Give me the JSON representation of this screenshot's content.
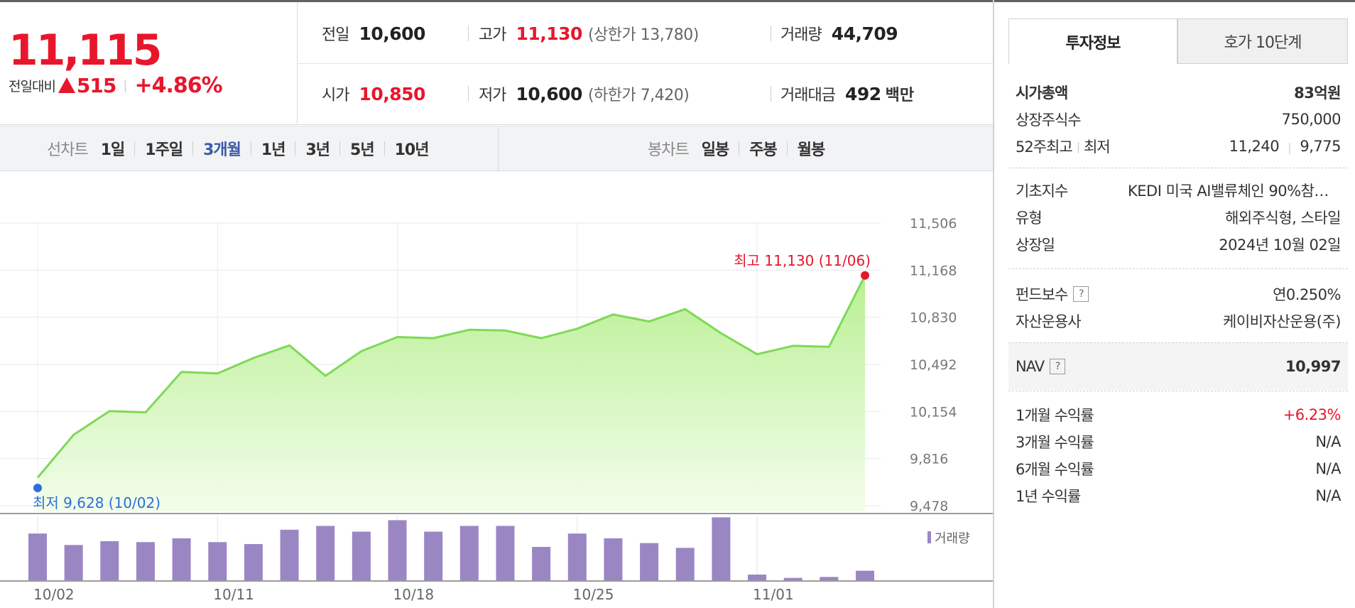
{
  "summary": {
    "price": "11,115",
    "diff_label": "전일대비",
    "diff_value": "515",
    "diff_pct": "+4.86%",
    "prev_label": "전일",
    "prev_value": "10,600",
    "open_label": "시가",
    "open_value": "10,850",
    "high_label": "고가",
    "high_value": "11,130",
    "high_note": "(상한가 13,780)",
    "low_label": "저가",
    "low_value": "10,600",
    "low_note": "(하한가 7,420)",
    "volume_label": "거래량",
    "volume_value": "44,709",
    "amount_label": "거래대금",
    "amount_value": "492",
    "amount_unit": "백만",
    "up_color": "#e8162c"
  },
  "controls": {
    "line_label": "선차트",
    "line_periods": [
      "1일",
      "1주일",
      "3개월",
      "1년",
      "3년",
      "5년",
      "10년"
    ],
    "active_period": "3개월",
    "candle_label": "봉차트",
    "candle_periods": [
      "일봉",
      "주봉",
      "월봉"
    ]
  },
  "chart_data": {
    "type": "area",
    "x": [
      "10/02",
      "10/04",
      "10/07",
      "10/08",
      "10/10",
      "10/11",
      "10/14",
      "10/15",
      "10/16",
      "10/17",
      "10/18",
      "10/21",
      "10/22",
      "10/23",
      "10/24",
      "10/25",
      "10/28",
      "10/29",
      "10/30",
      "10/31",
      "11/01",
      "11/04",
      "11/05",
      "11/06"
    ],
    "series": [
      {
        "name": "가격",
        "values": [
          9680,
          9987,
          10157,
          10148,
          10438,
          10427,
          10538,
          10628,
          10410,
          10587,
          10688,
          10680,
          10740,
          10735,
          10680,
          10748,
          10850,
          10800,
          10888,
          10715,
          10565,
          10625,
          10618,
          11130
        ],
        "color": "#7ed957"
      },
      {
        "name": "거래량",
        "values": [
          4900,
          3700,
          4100,
          4000,
          4400,
          4000,
          3800,
          5300,
          5700,
          5100,
          6300,
          5100,
          5700,
          5700,
          3500,
          4900,
          4400,
          3900,
          3400,
          6600,
          600,
          250,
          350,
          1000
        ],
        "color": "#9b86c4"
      }
    ],
    "y_ticks": [
      "11,506",
      "11,168",
      "10,830",
      "10,492",
      "10,154",
      "9,816",
      "9,478"
    ],
    "ylim": [
      9478,
      11506
    ],
    "x_tick_labels": [
      "10/02",
      "10/11",
      "10/18",
      "10/25",
      "11/01"
    ],
    "high_annotation": "최고 11,130 (11/06)",
    "low_annotation": "최저 9,628 (10/02)",
    "volume_legend": "거래량",
    "grid": true
  },
  "side": {
    "tabs": [
      "투자정보",
      "호가 10단계"
    ],
    "rows1": [
      {
        "label": "시가총액",
        "value": "83억원"
      },
      {
        "label": "상장주식수",
        "value": "750,000"
      },
      {
        "label": "52주최고",
        "label2": "최저",
        "value": "11,240",
        "value2": "9,775"
      }
    ],
    "rows2": [
      {
        "label": "기초지수",
        "value": "KEDI 미국 AI밸류체인 90%참여 지수"
      },
      {
        "label": "유형",
        "value": "해외주식형, 스타일"
      },
      {
        "label": "상장일",
        "value": "2024년 10월 02일"
      }
    ],
    "rows3": [
      {
        "label": "펀드보수",
        "value": "연0.250%"
      },
      {
        "label": "자산운용사",
        "value": "케이비자산운용(주)"
      }
    ],
    "nav": {
      "label": "NAV",
      "value": "10,997"
    },
    "returns": [
      {
        "label": "1개월 수익률",
        "value": "+6.23%"
      },
      {
        "label": "3개월 수익률",
        "value": "N/A"
      },
      {
        "label": "6개월 수익률",
        "value": "N/A"
      },
      {
        "label": "1년 수익률",
        "value": "N/A"
      }
    ],
    "help_mark": "?"
  }
}
